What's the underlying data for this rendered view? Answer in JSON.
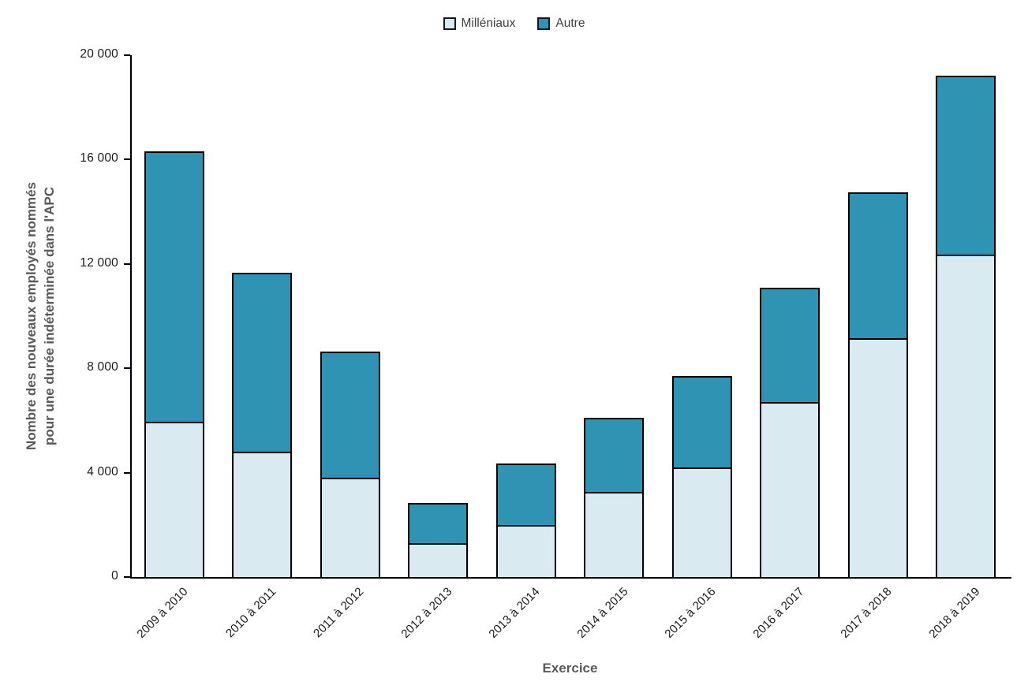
{
  "chart_data": {
    "type": "bar",
    "stacked": true,
    "title": "",
    "xlabel": "Exercice",
    "ylabel_lines": [
      "Nombre des nouveaux employés nommés",
      "pour une durée indéterminée dans l'APC"
    ],
    "categories": [
      "2009 à 2010",
      "2010 à 2011",
      "2011 à 2012",
      "2012 à 2013",
      "2013 à 2014",
      "2014 à 2015",
      "2015 à 2016",
      "2016 à 2017",
      "2017 à 2018",
      "2018 à 2019"
    ],
    "series": [
      {
        "name": "Milléniaux",
        "color": "#D9EAF1",
        "values": [
          5950,
          4800,
          3800,
          1300,
          2000,
          3250,
          4200,
          6700,
          9150,
          12350
        ]
      },
      {
        "name": "Autre",
        "color": "#2F94B4",
        "values": [
          10350,
          6850,
          4850,
          1550,
          2350,
          2850,
          3500,
          4400,
          5600,
          6850
        ]
      }
    ],
    "totals": [
      16300,
      11650,
      8650,
      2850,
      4350,
      6100,
      7700,
      11100,
      14750,
      19200
    ],
    "ylim": [
      0,
      20000
    ],
    "ytick_step": 4000,
    "ytick_labels": [
      "0",
      "4 000",
      "8 000",
      "12 000",
      "16 000",
      "20 000"
    ],
    "legend_position": "top-center",
    "grid": false,
    "bar_border_color": "#000000",
    "axis_color": "#000000",
    "axis_title_color": "#595959",
    "tick_label_color": "#1a1a1a"
  }
}
